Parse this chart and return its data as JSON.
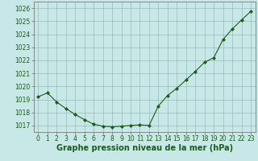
{
  "x": [
    0,
    1,
    2,
    3,
    4,
    5,
    6,
    7,
    8,
    9,
    10,
    11,
    12,
    13,
    14,
    15,
    16,
    17,
    18,
    19,
    20,
    21,
    22,
    23
  ],
  "y": [
    1019.2,
    1019.5,
    1018.8,
    1018.3,
    1017.85,
    1017.45,
    1017.1,
    1016.95,
    1016.9,
    1016.95,
    1017.0,
    1017.05,
    1017.0,
    1018.5,
    1019.3,
    1019.85,
    1020.5,
    1021.15,
    1021.85,
    1022.2,
    1023.6,
    1024.4,
    1025.1,
    1025.75
  ],
  "line_color": "#1a5c1a",
  "marker_color": "#1a5c1a",
  "bg_color": "#c8e8e8",
  "grid_color": "#99bbbb",
  "xlabel": "Graphe pression niveau de la mer (hPa)",
  "xlabel_fontsize": 7,
  "ylim": [
    1016.5,
    1026.5
  ],
  "xlim": [
    -0.5,
    23.5
  ],
  "xtick_labels": [
    "0",
    "1",
    "2",
    "3",
    "4",
    "5",
    "6",
    "7",
    "8",
    "9",
    "10",
    "11",
    "12",
    "13",
    "14",
    "15",
    "16",
    "17",
    "18",
    "19",
    "20",
    "21",
    "22",
    "23"
  ],
  "ytick_vals": [
    1017,
    1018,
    1019,
    1020,
    1021,
    1022,
    1023,
    1024,
    1025,
    1026
  ],
  "tick_fontsize": 5.5
}
